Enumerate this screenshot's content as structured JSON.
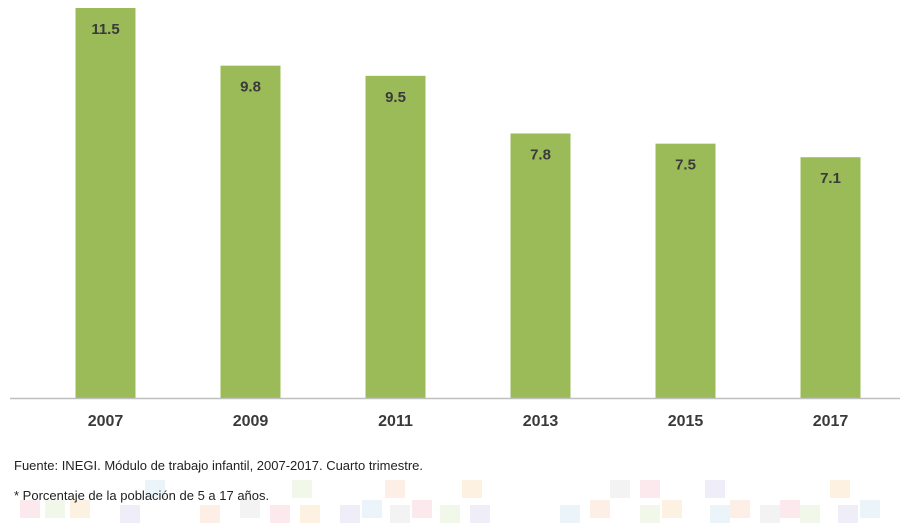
{
  "chart_data": {
    "type": "bar",
    "categories": [
      "2007",
      "2009",
      "2011",
      "2013",
      "2015",
      "2017"
    ],
    "values": [
      11.5,
      9.8,
      9.5,
      7.8,
      7.5,
      7.1
    ],
    "title": "",
    "xlabel": "",
    "ylabel": "",
    "ylim": [
      0,
      11.5
    ],
    "grid": false,
    "legend": "none",
    "bar_color": "#9bbb59",
    "axis_color": "#bfbfbf",
    "label_color": "#3a3a3a"
  },
  "notes": {
    "source": "Fuente: INEGI. Módulo de trabajo infantil, 2007-2017. Cuarto trimestre.",
    "footnote": "* Porcentaje de la población de 5 a 17 años."
  },
  "decoration": {
    "colors": [
      "#f4b6c2",
      "#cfe3b5",
      "#f9d49a",
      "#c9c3e6",
      "#b9dcea",
      "#f7c9a8",
      "#d8d8d8"
    ]
  }
}
